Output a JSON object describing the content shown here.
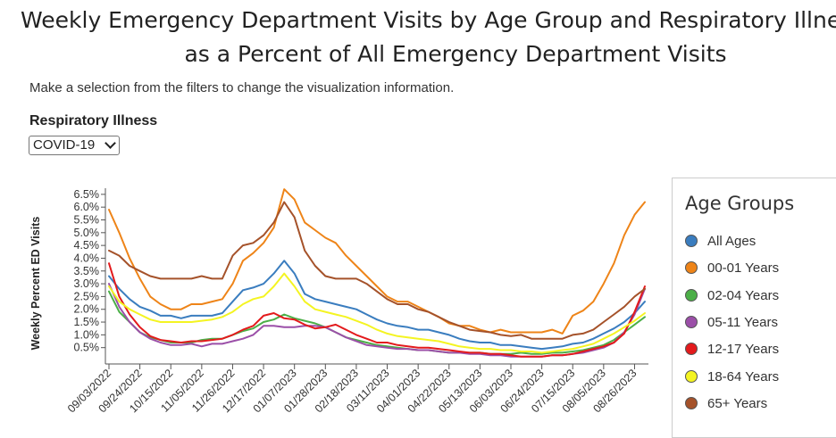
{
  "page": {
    "title_line1": "Weekly Emergency Department Visits by Age Group and Respiratory Illness",
    "title_line2": "as a Percent of All Emergency Department Visits",
    "intro": "Make a selection from the filters to change the visualization information.",
    "filter_label": "Respiratory Illness",
    "filter_selected": "COVID-19"
  },
  "legend": {
    "title": "Age Groups",
    "items": [
      {
        "label": "All Ages",
        "color": "#3a7dbf"
      },
      {
        "label": "00-01 Years",
        "color": "#ee8418"
      },
      {
        "label": "02-04 Years",
        "color": "#4caf48"
      },
      {
        "label": "05-11 Years",
        "color": "#9b4fa8"
      },
      {
        "label": "12-17 Years",
        "color": "#e31a1c"
      },
      {
        "label": "18-64 Years",
        "color": "#f4f422"
      },
      {
        "label": "65+ Years",
        "color": "#a5522a"
      }
    ]
  },
  "chart_data": {
    "type": "line",
    "ylabel": "Weekly Percent ED Visits",
    "xlabel": "",
    "ylim": [
      0,
      6.6
    ],
    "y_ticks": [
      "0.5%",
      "1.0%",
      "1.5%",
      "2.0%",
      "2.5%",
      "3.0%",
      "3.5%",
      "4.0%",
      "4.5%",
      "5.0%",
      "5.5%",
      "6.0%",
      "6.5%"
    ],
    "y_tick_values": [
      0.5,
      1.0,
      1.5,
      2.0,
      2.5,
      3.0,
      3.5,
      4.0,
      4.5,
      5.0,
      5.5,
      6.0,
      6.5
    ],
    "x_tick_labels": [
      "09/03/2022",
      "09/24/2022",
      "10/15/2022",
      "11/05/2022",
      "11/26/2022",
      "12/17/2022",
      "01/07/2023",
      "01/28/2023",
      "02/18/2023",
      "03/11/2023",
      "04/01/2023",
      "04/22/2023",
      "05/13/2023",
      "06/03/2023",
      "06/24/2023",
      "07/15/2023",
      "08/05/2023",
      "08/26/2023"
    ],
    "x": [
      "09/03/2022",
      "09/10/2022",
      "09/17/2022",
      "09/24/2022",
      "10/01/2022",
      "10/08/2022",
      "10/15/2022",
      "10/22/2022",
      "10/29/2022",
      "11/05/2022",
      "11/12/2022",
      "11/19/2022",
      "11/26/2022",
      "12/03/2022",
      "12/10/2022",
      "12/17/2022",
      "12/24/2022",
      "12/31/2022",
      "01/07/2023",
      "01/14/2023",
      "01/21/2023",
      "01/28/2023",
      "02/04/2023",
      "02/11/2023",
      "02/18/2023",
      "02/25/2023",
      "03/04/2023",
      "03/11/2023",
      "03/18/2023",
      "03/25/2023",
      "04/01/2023",
      "04/08/2023",
      "04/15/2023",
      "04/22/2023",
      "04/29/2023",
      "05/06/2023",
      "05/13/2023",
      "05/20/2023",
      "05/27/2023",
      "06/03/2023",
      "06/10/2023",
      "06/17/2023",
      "06/24/2023",
      "07/01/2023",
      "07/08/2023",
      "07/15/2023",
      "07/22/2023",
      "07/29/2023",
      "08/05/2023",
      "08/12/2023",
      "08/19/2023",
      "08/26/2023",
      "09/02/2023"
    ],
    "series": [
      {
        "name": "All Ages",
        "values": [
          3.3,
          2.8,
          2.4,
          2.1,
          1.95,
          1.75,
          1.75,
          1.65,
          1.75,
          1.75,
          1.75,
          1.85,
          2.3,
          2.75,
          2.85,
          3.0,
          3.4,
          3.9,
          3.4,
          2.6,
          2.4,
          2.3,
          2.2,
          2.1,
          2.0,
          1.8,
          1.6,
          1.45,
          1.35,
          1.3,
          1.2,
          1.2,
          1.1,
          1.0,
          0.85,
          0.75,
          0.7,
          0.7,
          0.6,
          0.6,
          0.55,
          0.5,
          0.45,
          0.5,
          0.55,
          0.65,
          0.7,
          0.85,
          1.05,
          1.25,
          1.5,
          1.85,
          2.3
        ]
      },
      {
        "name": "00-01 Years",
        "values": [
          5.9,
          5.0,
          4.0,
          3.2,
          2.5,
          2.2,
          2.0,
          2.0,
          2.2,
          2.2,
          2.3,
          2.4,
          3.0,
          3.9,
          4.2,
          4.6,
          5.2,
          6.7,
          6.3,
          5.4,
          5.1,
          4.8,
          4.6,
          4.1,
          3.7,
          3.3,
          2.9,
          2.5,
          2.3,
          2.3,
          2.1,
          1.9,
          1.7,
          1.45,
          1.35,
          1.35,
          1.2,
          1.1,
          1.2,
          1.1,
          1.1,
          1.1,
          1.1,
          1.2,
          1.05,
          1.75,
          1.95,
          2.3,
          3.0,
          3.8,
          4.9,
          5.7,
          6.2
        ]
      },
      {
        "name": "02-04 Years",
        "values": [
          2.7,
          1.9,
          1.5,
          1.1,
          0.9,
          0.8,
          0.7,
          0.7,
          0.7,
          0.8,
          0.85,
          0.85,
          1.0,
          1.15,
          1.25,
          1.5,
          1.6,
          1.8,
          1.65,
          1.55,
          1.45,
          1.3,
          1.1,
          0.9,
          0.8,
          0.7,
          0.6,
          0.55,
          0.5,
          0.45,
          0.4,
          0.4,
          0.35,
          0.3,
          0.3,
          0.3,
          0.3,
          0.25,
          0.25,
          0.25,
          0.3,
          0.25,
          0.25,
          0.3,
          0.3,
          0.35,
          0.4,
          0.5,
          0.6,
          0.8,
          1.1,
          1.4,
          1.7
        ]
      },
      {
        "name": "05-11 Years",
        "values": [
          3.0,
          2.1,
          1.5,
          1.1,
          0.85,
          0.7,
          0.6,
          0.6,
          0.65,
          0.55,
          0.65,
          0.65,
          0.75,
          0.85,
          1.0,
          1.35,
          1.35,
          1.3,
          1.3,
          1.35,
          1.35,
          1.3,
          1.1,
          0.9,
          0.75,
          0.6,
          0.55,
          0.5,
          0.45,
          0.45,
          0.4,
          0.4,
          0.35,
          0.3,
          0.3,
          0.25,
          0.25,
          0.2,
          0.2,
          0.15,
          0.15,
          0.15,
          0.15,
          0.2,
          0.2,
          0.25,
          0.3,
          0.4,
          0.5,
          0.7,
          1.1,
          1.8,
          2.8
        ]
      },
      {
        "name": "12-17 Years",
        "values": [
          3.8,
          2.5,
          1.8,
          1.3,
          0.95,
          0.8,
          0.75,
          0.7,
          0.75,
          0.75,
          0.8,
          0.85,
          1.0,
          1.2,
          1.35,
          1.75,
          1.85,
          1.65,
          1.6,
          1.4,
          1.25,
          1.3,
          1.4,
          1.2,
          1.0,
          0.85,
          0.7,
          0.7,
          0.6,
          0.55,
          0.5,
          0.5,
          0.45,
          0.4,
          0.35,
          0.3,
          0.3,
          0.25,
          0.25,
          0.2,
          0.15,
          0.15,
          0.15,
          0.2,
          0.2,
          0.25,
          0.35,
          0.45,
          0.55,
          0.7,
          1.05,
          1.9,
          2.9
        ]
      },
      {
        "name": "18-64 Years",
        "values": [
          2.9,
          2.3,
          2.0,
          1.8,
          1.6,
          1.5,
          1.5,
          1.5,
          1.5,
          1.55,
          1.6,
          1.7,
          1.9,
          2.2,
          2.4,
          2.5,
          2.9,
          3.4,
          2.9,
          2.3,
          2.0,
          1.9,
          1.8,
          1.7,
          1.55,
          1.4,
          1.2,
          1.05,
          0.95,
          0.9,
          0.85,
          0.8,
          0.75,
          0.65,
          0.55,
          0.5,
          0.45,
          0.45,
          0.4,
          0.4,
          0.35,
          0.35,
          0.3,
          0.35,
          0.4,
          0.45,
          0.55,
          0.65,
          0.85,
          1.05,
          1.3,
          1.55,
          1.85
        ]
      },
      {
        "name": "65+ Years",
        "values": [
          4.3,
          4.1,
          3.7,
          3.5,
          3.3,
          3.2,
          3.2,
          3.2,
          3.2,
          3.3,
          3.2,
          3.2,
          4.1,
          4.5,
          4.6,
          4.9,
          5.4,
          6.2,
          5.6,
          4.3,
          3.7,
          3.3,
          3.2,
          3.2,
          3.2,
          3.0,
          2.7,
          2.4,
          2.2,
          2.2,
          2.0,
          1.9,
          1.7,
          1.5,
          1.35,
          1.2,
          1.15,
          1.1,
          1.0,
          0.95,
          1.0,
          0.85,
          0.85,
          0.85,
          0.85,
          1.0,
          1.05,
          1.2,
          1.5,
          1.8,
          2.1,
          2.5,
          2.8
        ]
      }
    ]
  }
}
